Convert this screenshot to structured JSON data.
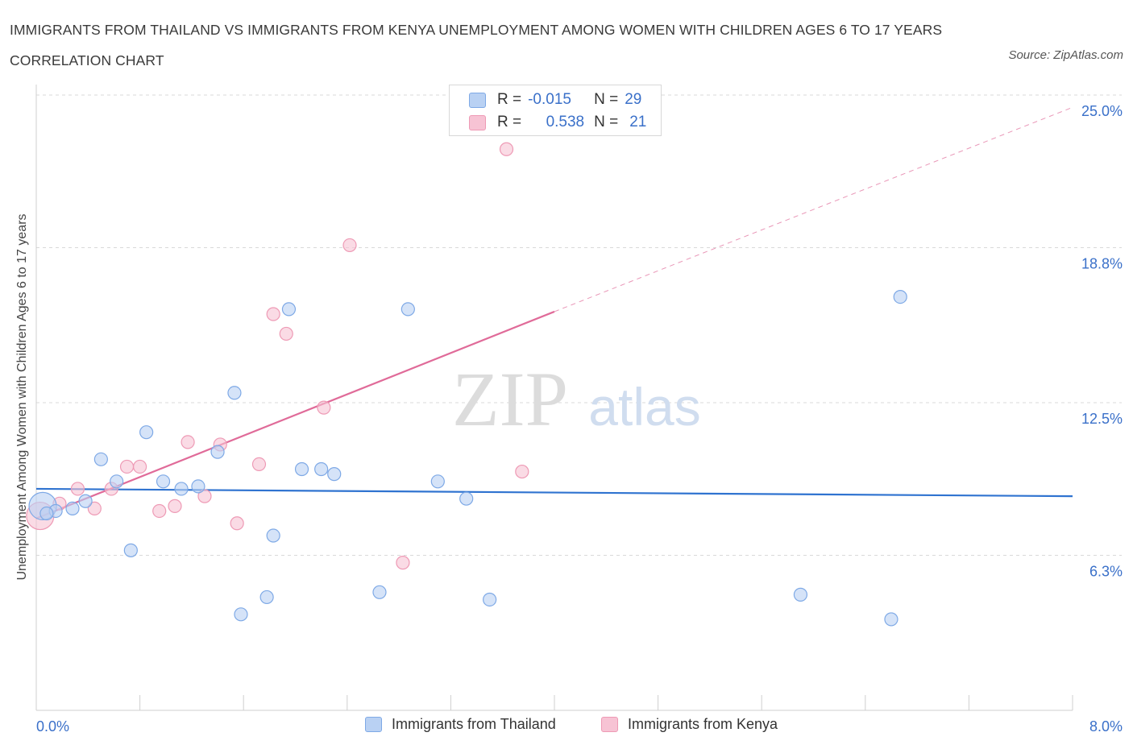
{
  "title": "IMMIGRANTS FROM THAILAND VS IMMIGRANTS FROM KENYA UNEMPLOYMENT AMONG WOMEN WITH CHILDREN AGES 6 TO 17 YEARS CORRELATION CHART",
  "source": "Source: ZipAtlas.com",
  "watermark": {
    "zip": "ZIP",
    "atlas": "atlas"
  },
  "legend": {
    "r_label": "R =",
    "n_label": "N =",
    "rows": [
      {
        "r": "-0.015",
        "n": "29"
      },
      {
        "r": "0.538",
        "n": "21"
      }
    ]
  },
  "colors": {
    "thailand_fill": "#b9d1f3",
    "thailand_stroke": "#7ea9e6",
    "thailand_line": "#2f73d0",
    "kenya_fill": "#f7c3d4",
    "kenya_stroke": "#ee9ab5",
    "kenya_line": "#e06b99",
    "grid": "#d9d9d9",
    "tick_label": "#3a70c9"
  },
  "chart_data": {
    "type": "scatter",
    "title": "IMMIGRANTS FROM THAILAND VS IMMIGRANTS FROM KENYA UNEMPLOYMENT AMONG WOMEN WITH CHILDREN AGES 6 TO 17 YEARS CORRELATION CHART",
    "xlabel": "",
    "ylabel": "Unemployment Among Women with Children Ages 6 to 17 years",
    "xlim": [
      0,
      8
    ],
    "ylim": [
      0,
      25
    ],
    "x_tick_labels": [
      "0.0%",
      "8.0%"
    ],
    "y_ticks": [
      6.3,
      12.5,
      18.8,
      25.0
    ],
    "y_tick_labels": [
      "6.3%",
      "12.5%",
      "18.8%",
      "25.0%"
    ],
    "grid": true,
    "legend_position": "top-center",
    "series": [
      {
        "name": "Immigrants from Thailand",
        "R": -0.015,
        "N": 29,
        "trend": {
          "x": [
            0,
            8
          ],
          "y": [
            9.0,
            8.7
          ],
          "dashed_extension": false
        },
        "points": [
          {
            "x": 0.05,
            "y": 8.3,
            "big": true
          },
          {
            "x": 0.15,
            "y": 8.1
          },
          {
            "x": 0.28,
            "y": 8.2
          },
          {
            "x": 0.38,
            "y": 8.5
          },
          {
            "x": 0.5,
            "y": 10.2
          },
          {
            "x": 0.62,
            "y": 9.3
          },
          {
            "x": 0.73,
            "y": 6.5
          },
          {
            "x": 0.85,
            "y": 11.3
          },
          {
            "x": 0.98,
            "y": 9.3
          },
          {
            "x": 1.12,
            "y": 9.0
          },
          {
            "x": 1.25,
            "y": 9.1
          },
          {
            "x": 1.4,
            "y": 10.5
          },
          {
            "x": 1.53,
            "y": 12.9
          },
          {
            "x": 1.58,
            "y": 3.9
          },
          {
            "x": 1.78,
            "y": 4.6
          },
          {
            "x": 1.83,
            "y": 7.1
          },
          {
            "x": 1.95,
            "y": 16.3
          },
          {
            "x": 2.05,
            "y": 9.8
          },
          {
            "x": 2.2,
            "y": 9.8
          },
          {
            "x": 2.3,
            "y": 9.6
          },
          {
            "x": 2.65,
            "y": 4.8
          },
          {
            "x": 2.87,
            "y": 16.3
          },
          {
            "x": 3.1,
            "y": 9.3
          },
          {
            "x": 3.32,
            "y": 8.6
          },
          {
            "x": 3.5,
            "y": 4.5
          },
          {
            "x": 5.9,
            "y": 4.7
          },
          {
            "x": 6.6,
            "y": 3.7
          },
          {
            "x": 6.67,
            "y": 16.8
          },
          {
            "x": 0.08,
            "y": 8.0
          }
        ]
      },
      {
        "name": "Immigrants from Kenya",
        "R": 0.538,
        "N": 21,
        "trend": {
          "x": [
            0,
            4.0
          ],
          "y": [
            7.8,
            16.2
          ],
          "dashed_extension": {
            "x": [
              4.0,
              8.0
            ],
            "y": [
              16.2,
              24.5
            ]
          }
        },
        "points": [
          {
            "x": 0.03,
            "y": 7.9,
            "big": true
          },
          {
            "x": 0.18,
            "y": 8.4
          },
          {
            "x": 0.32,
            "y": 9.0
          },
          {
            "x": 0.45,
            "y": 8.2
          },
          {
            "x": 0.58,
            "y": 9.0
          },
          {
            "x": 0.7,
            "y": 9.9
          },
          {
            "x": 0.8,
            "y": 9.9
          },
          {
            "x": 0.95,
            "y": 8.1
          },
          {
            "x": 1.07,
            "y": 8.3
          },
          {
            "x": 1.17,
            "y": 10.9
          },
          {
            "x": 1.3,
            "y": 8.7
          },
          {
            "x": 1.42,
            "y": 10.8
          },
          {
            "x": 1.55,
            "y": 7.6
          },
          {
            "x": 1.72,
            "y": 10.0
          },
          {
            "x": 1.83,
            "y": 16.1
          },
          {
            "x": 1.93,
            "y": 15.3
          },
          {
            "x": 2.22,
            "y": 12.3
          },
          {
            "x": 2.42,
            "y": 18.9
          },
          {
            "x": 2.83,
            "y": 6.0
          },
          {
            "x": 3.63,
            "y": 22.8
          },
          {
            "x": 3.75,
            "y": 9.7
          }
        ]
      }
    ]
  }
}
